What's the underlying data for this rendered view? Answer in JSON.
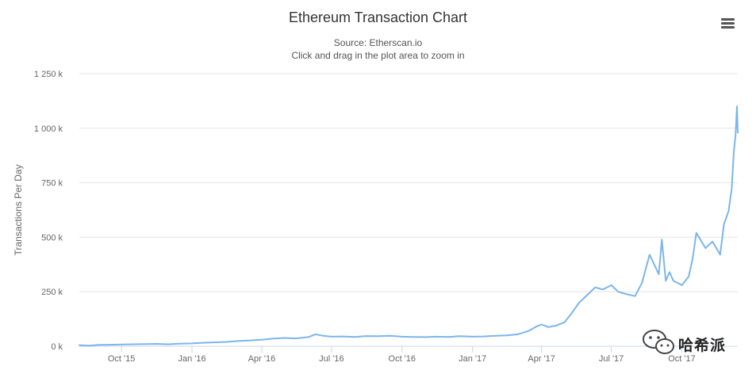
{
  "chart_data": {
    "type": "line",
    "title": "Ethereum Transaction Chart",
    "subtitle": "Source: Etherscan.io",
    "hint": "Click and drag in the plot area to zoom in",
    "ylabel": "Transactions Per Day",
    "xlabel": "",
    "ylim": [
      0,
      1250000
    ],
    "xlim": [
      "2015-08-07",
      "2017-12-13"
    ],
    "y_ticks": [
      {
        "value": 0,
        "label": "0 k"
      },
      {
        "value": 250000,
        "label": "250 k"
      },
      {
        "value": 500000,
        "label": "500 k"
      },
      {
        "value": 750000,
        "label": "750 k"
      },
      {
        "value": 1000000,
        "label": "1 000 k"
      },
      {
        "value": 1250000,
        "label": "1 250 k"
      }
    ],
    "x_ticks": [
      {
        "date": "2015-10-01",
        "label": "Oct '15"
      },
      {
        "date": "2016-01-01",
        "label": "Jan '16"
      },
      {
        "date": "2016-04-01",
        "label": "Apr '16"
      },
      {
        "date": "2016-07-01",
        "label": "Jul '16"
      },
      {
        "date": "2016-10-01",
        "label": "Oct '16"
      },
      {
        "date": "2017-01-01",
        "label": "Jan '17"
      },
      {
        "date": "2017-04-01",
        "label": "Apr '17"
      },
      {
        "date": "2017-07-01",
        "label": "Jul '17"
      },
      {
        "date": "2017-10-01",
        "label": "Oct '17"
      }
    ],
    "grid": true,
    "legend": "none",
    "series": [
      {
        "color": "#7cb5ec",
        "x": [
          "2015-08-07",
          "2015-08-20",
          "2015-09-01",
          "2015-09-15",
          "2015-10-01",
          "2015-10-15",
          "2015-11-01",
          "2015-11-15",
          "2015-12-01",
          "2015-12-15",
          "2016-01-01",
          "2016-01-15",
          "2016-02-01",
          "2016-02-15",
          "2016-03-01",
          "2016-03-15",
          "2016-04-01",
          "2016-04-15",
          "2016-05-01",
          "2016-05-15",
          "2016-06-01",
          "2016-06-10",
          "2016-06-20",
          "2016-07-01",
          "2016-07-15",
          "2016-08-01",
          "2016-08-15",
          "2016-09-01",
          "2016-09-15",
          "2016-10-01",
          "2016-10-15",
          "2016-11-01",
          "2016-11-15",
          "2016-12-01",
          "2016-12-15",
          "2017-01-01",
          "2017-01-15",
          "2017-02-01",
          "2017-02-15",
          "2017-03-01",
          "2017-03-15",
          "2017-03-25",
          "2017-04-01",
          "2017-04-10",
          "2017-04-20",
          "2017-05-01",
          "2017-05-10",
          "2017-05-20",
          "2017-06-01",
          "2017-06-10",
          "2017-06-20",
          "2017-07-01",
          "2017-07-10",
          "2017-07-20",
          "2017-08-01",
          "2017-08-10",
          "2017-08-20",
          "2017-09-01",
          "2017-09-05",
          "2017-09-10",
          "2017-09-15",
          "2017-09-20",
          "2017-10-01",
          "2017-10-10",
          "2017-10-15",
          "2017-10-20",
          "2017-11-01",
          "2017-11-10",
          "2017-11-20",
          "2017-11-25",
          "2017-12-01",
          "2017-12-05",
          "2017-12-08",
          "2017-12-10",
          "2017-12-12",
          "2017-12-13"
        ],
        "values": [
          5000,
          3000,
          6000,
          7000,
          8000,
          9000,
          10000,
          11000,
          9000,
          12000,
          13000,
          16000,
          18000,
          20000,
          24000,
          26000,
          30000,
          35000,
          38000,
          36000,
          42000,
          55000,
          48000,
          44000,
          45000,
          43000,
          47000,
          46000,
          48000,
          44000,
          43000,
          42000,
          44000,
          43000,
          46000,
          44000,
          45000,
          48000,
          50000,
          55000,
          70000,
          90000,
          100000,
          88000,
          95000,
          110000,
          150000,
          200000,
          240000,
          270000,
          260000,
          280000,
          250000,
          240000,
          230000,
          290000,
          420000,
          330000,
          490000,
          300000,
          340000,
          300000,
          280000,
          320000,
          400000,
          520000,
          450000,
          480000,
          420000,
          560000,
          620000,
          720000,
          900000,
          960000,
          1100000,
          980000
        ]
      }
    ]
  },
  "toolbar": {
    "menu_icon": "hamburger-icon"
  },
  "watermark": {
    "icon": "wechat-icon",
    "text": "哈希派"
  }
}
